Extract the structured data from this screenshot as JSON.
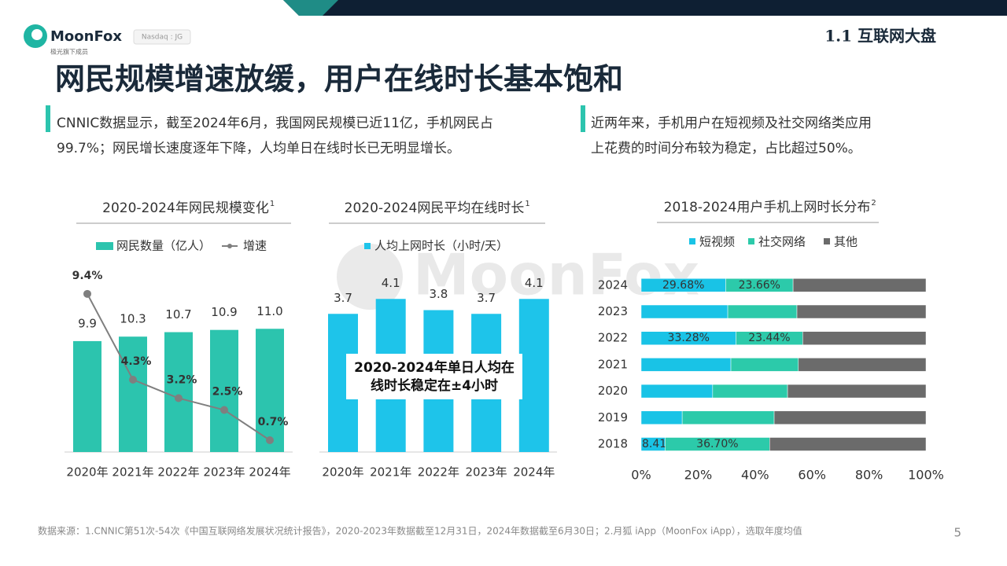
{
  "header": {
    "logo": "MoonFox",
    "logo_sub": "极光旗下成员",
    "ticker": "Nasdaq : JG",
    "section": "1.1 互联网大盘",
    "title": "网民规模增速放缓，用户在线时长基本饱和"
  },
  "bullets": [
    {
      "lines": [
        "CNNIC数据显示，截至2024年6月，我国网民规模已近11亿，手机网民占",
        "99.7%；网民增长速度逐年下降，人均单日在线时长已无明显增长。"
      ]
    },
    {
      "lines": [
        "近两年来，手机用户在短视频及社交网络类应用",
        "上花费的时间分布较为稳定，占比超过50%。"
      ]
    }
  ],
  "watermark": "MoonFox",
  "footer": "数据来源：1.CNNIC第51次-54次《中国互联网络发展状况统计报告》，2020-2023年数据截至12月31日，2024年数据截至6月30日；2.月狐 iApp（MoonFox iApp），选取年度均值",
  "page_number": "5",
  "chart_data": [
    {
      "type": "bar-line",
      "title": "2020-2024年网民规模变化",
      "title_note": "1",
      "categories": [
        "2020年",
        "2021年",
        "2022年",
        "2023年",
        "2024年"
      ],
      "series": [
        {
          "name": "网民数量（亿人）",
          "color": "#2cc4ae",
          "kind": "bar",
          "values": [
            9.9,
            10.3,
            10.7,
            10.9,
            11.0
          ],
          "value_labels": [
            "9.9",
            "10.3",
            "10.7",
            "10.9",
            "11.0"
          ]
        },
        {
          "name": "增速",
          "color": "#7f7f7f",
          "kind": "line",
          "values": [
            9.4,
            4.3,
            3.2,
            2.5,
            0.7
          ],
          "value_labels": [
            "9.4%",
            "4.3%",
            "3.2%",
            "2.5%",
            "0.7%"
          ]
        }
      ]
    },
    {
      "type": "bar",
      "title": "2020-2024网民平均在线时长",
      "title_note": "1",
      "categories": [
        "2020年",
        "2021年",
        "2022年",
        "2023年",
        "2024年"
      ],
      "series": [
        {
          "name": "人均上网时长（小时/天）",
          "color": "#1ec4ea",
          "values": [
            3.7,
            4.1,
            3.8,
            3.7,
            4.1
          ]
        }
      ],
      "annotation": [
        "2020-2024年单日人均在",
        "线时长稳定在±4小时"
      ]
    },
    {
      "type": "stacked-barh",
      "title": "2018-2024用户手机上网时长分布",
      "title_note": "2",
      "categories": [
        "2018",
        "2019",
        "2020",
        "2021",
        "2022",
        "2023",
        "2024"
      ],
      "series": [
        {
          "name": "短视频",
          "color": "#19c3e6",
          "values": [
            8.41,
            14.4,
            25.1,
            31.5,
            33.28,
            30.4,
            29.68
          ],
          "value_labels": [
            "8.41%",
            null,
            null,
            null,
            "33.28%",
            null,
            "29.68%"
          ]
        },
        {
          "name": "社交网络",
          "color": "#2ccaaa",
          "values": [
            36.7,
            32.3,
            26.3,
            23.7,
            23.44,
            24.3,
            23.66
          ],
          "value_labels": [
            "36.70%",
            null,
            null,
            null,
            "23.44%",
            null,
            "23.66%"
          ]
        },
        {
          "name": "其他",
          "color": "#6b6b6b",
          "values": [
            54.89,
            53.3,
            48.6,
            44.8,
            43.28,
            45.3,
            46.66
          ]
        }
      ],
      "xlim": [
        0,
        100
      ],
      "xticks": [
        {
          "value": 0,
          "label": "0%"
        },
        {
          "value": 20,
          "label": "20%"
        },
        {
          "value": 40,
          "label": "40%"
        },
        {
          "value": 60,
          "label": "60%"
        },
        {
          "value": 80,
          "label": "80%"
        },
        {
          "value": 100,
          "label": "100%"
        }
      ]
    }
  ]
}
